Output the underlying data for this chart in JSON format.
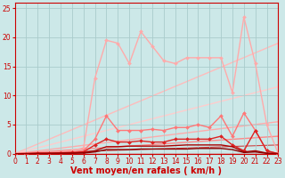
{
  "xlabel": "Vent moyen/en rafales ( km/h )",
  "xlim": [
    0,
    23
  ],
  "ylim": [
    0,
    26
  ],
  "yticks": [
    0,
    5,
    10,
    15,
    20,
    25
  ],
  "xticks": [
    0,
    1,
    2,
    3,
    4,
    5,
    6,
    7,
    8,
    9,
    10,
    11,
    12,
    13,
    14,
    15,
    16,
    17,
    18,
    19,
    20,
    21,
    22,
    23
  ],
  "bg_color": "#cce8e8",
  "grid_color": "#aacccc",
  "lines": [
    {
      "x": [
        0,
        23
      ],
      "y": [
        0,
        19.0
      ],
      "color": "#ffbbbb",
      "lw": 1.0,
      "marker": null,
      "ms": 0,
      "zorder": 1
    },
    {
      "x": [
        0,
        23
      ],
      "y": [
        0,
        11.5
      ],
      "color": "#ffcccc",
      "lw": 1.0,
      "marker": null,
      "ms": 0,
      "zorder": 1
    },
    {
      "x": [
        0,
        23
      ],
      "y": [
        0,
        5.5
      ],
      "color": "#ffaaaa",
      "lw": 1.0,
      "marker": null,
      "ms": 0,
      "zorder": 1
    },
    {
      "x": [
        0,
        23
      ],
      "y": [
        0,
        3.0
      ],
      "color": "#ff8888",
      "lw": 1.0,
      "marker": null,
      "ms": 0,
      "zorder": 1
    },
    {
      "x": [
        0,
        23
      ],
      "y": [
        0,
        1.5
      ],
      "color": "#cc4444",
      "lw": 0.8,
      "marker": null,
      "ms": 0,
      "zorder": 1
    },
    {
      "x": [
        0,
        1,
        2,
        3,
        4,
        5,
        6,
        7,
        8,
        9,
        10,
        11,
        12,
        13,
        14,
        15,
        16,
        17,
        18,
        19,
        20,
        21,
        22,
        23
      ],
      "y": [
        0,
        0,
        0.2,
        0.2,
        0.3,
        0.5,
        1.0,
        13.0,
        19.5,
        19.0,
        15.5,
        21.0,
        18.5,
        16.0,
        15.5,
        16.5,
        16.5,
        16.5,
        16.5,
        10.5,
        23.5,
        15.5,
        5.0,
        0
      ],
      "color": "#ffaaaa",
      "lw": 1.0,
      "marker": "D",
      "ms": 2.0,
      "zorder": 3
    },
    {
      "x": [
        0,
        1,
        2,
        3,
        4,
        5,
        6,
        7,
        8,
        9,
        10,
        11,
        12,
        13,
        14,
        15,
        16,
        17,
        18,
        19,
        20,
        21,
        22,
        23
      ],
      "y": [
        0,
        0,
        0.1,
        0.1,
        0.2,
        0.3,
        0.5,
        2.5,
        6.5,
        4.0,
        4.0,
        4.0,
        4.2,
        4.0,
        4.5,
        4.5,
        5.0,
        4.5,
        6.5,
        3.0,
        7.0,
        4.0,
        0.5,
        0
      ],
      "color": "#ff7777",
      "lw": 1.0,
      "marker": "D",
      "ms": 2.0,
      "zorder": 4
    },
    {
      "x": [
        0,
        1,
        2,
        3,
        4,
        5,
        6,
        7,
        8,
        9,
        10,
        11,
        12,
        13,
        14,
        15,
        16,
        17,
        18,
        19,
        20,
        21,
        22,
        23
      ],
      "y": [
        0,
        0,
        0.1,
        0.1,
        0.15,
        0.2,
        0.3,
        1.5,
        2.5,
        2.0,
        2.0,
        2.2,
        2.0,
        2.0,
        2.5,
        2.5,
        2.5,
        2.5,
        3.0,
        1.5,
        0.5,
        4.0,
        0.5,
        0
      ],
      "color": "#dd2222",
      "lw": 1.0,
      "marker": "D",
      "ms": 2.0,
      "zorder": 5
    },
    {
      "x": [
        0,
        1,
        2,
        3,
        4,
        5,
        6,
        7,
        8,
        9,
        10,
        11,
        12,
        13,
        14,
        15,
        16,
        17,
        18,
        19,
        20,
        21,
        22,
        23
      ],
      "y": [
        0,
        0,
        0.05,
        0.05,
        0.1,
        0.1,
        0.2,
        0.5,
        1.2,
        1.2,
        1.3,
        1.3,
        1.3,
        1.3,
        1.4,
        1.5,
        1.5,
        1.5,
        1.5,
        1.2,
        0.3,
        0.5,
        0.1,
        0
      ],
      "color": "#aa0000",
      "lw": 1.0,
      "marker": null,
      "ms": 0,
      "zorder": 5
    },
    {
      "x": [
        0,
        1,
        2,
        3,
        4,
        5,
        6,
        7,
        8,
        9,
        10,
        11,
        12,
        13,
        14,
        15,
        16,
        17,
        18,
        19,
        20,
        21,
        22,
        23
      ],
      "y": [
        0,
        0,
        0.02,
        0.03,
        0.05,
        0.07,
        0.1,
        0.3,
        0.7,
        0.7,
        0.7,
        0.8,
        0.8,
        0.8,
        0.8,
        0.8,
        0.9,
        0.9,
        0.9,
        0.7,
        0.2,
        0.3,
        0.05,
        0
      ],
      "color": "#880000",
      "lw": 1.0,
      "marker": null,
      "ms": 0,
      "zorder": 5
    }
  ],
  "xlabel_color": "#cc0000",
  "xlabel_fontsize": 7,
  "tick_color": "#cc0000",
  "tick_fontsize": 5.5
}
